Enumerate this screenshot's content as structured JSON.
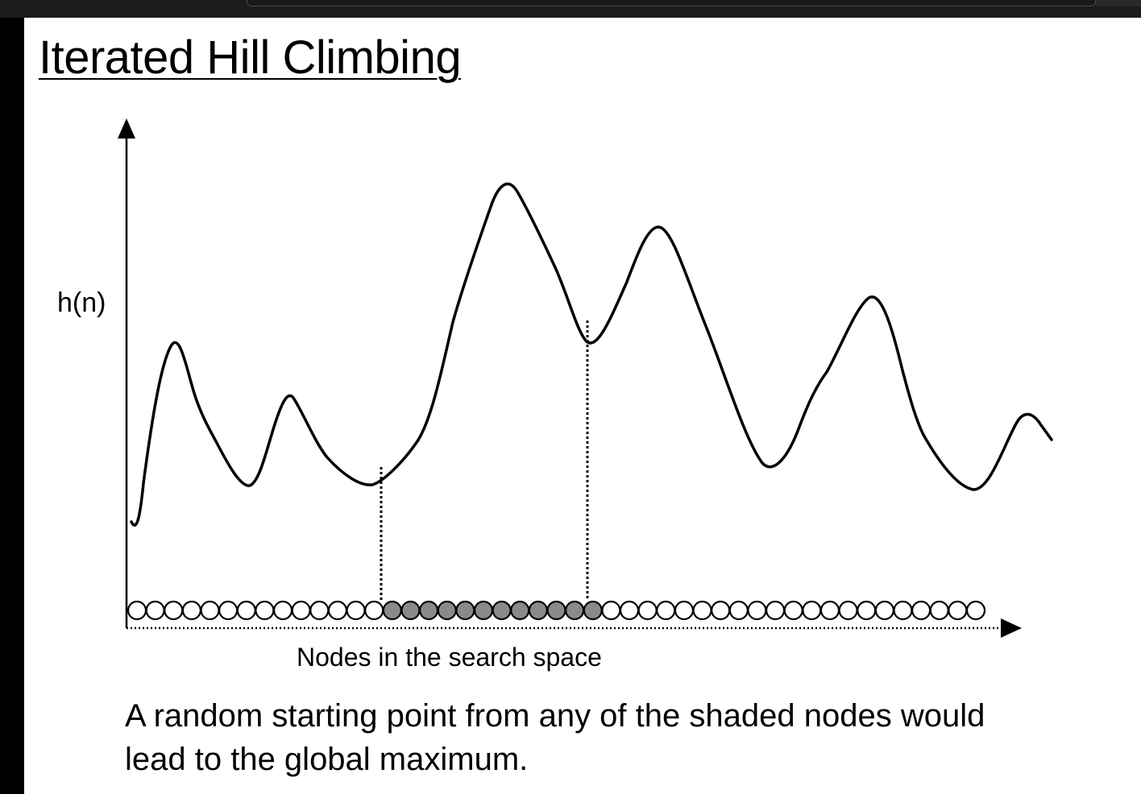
{
  "slide": {
    "title": "Iterated Hill Climbing",
    "caption": "A random starting point from any of the shaded nodes would lead to the global maximum."
  },
  "diagram": {
    "y_axis_label": "h(n)",
    "x_axis_label": "Nodes in the search space",
    "node_count": 47,
    "shaded_node_range": [
      14,
      25
    ],
    "node_colors": {
      "shaded": "#8a8a8a",
      "unshaded": "#ffffff",
      "outline": "#000000"
    }
  },
  "colors": {
    "background": "#ffffff",
    "ink": "#000000",
    "window_frame": "#000000"
  }
}
